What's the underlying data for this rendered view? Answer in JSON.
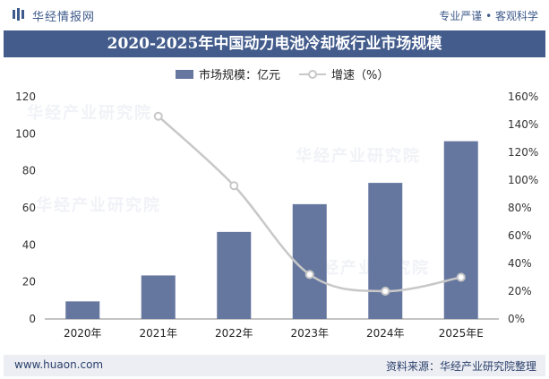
{
  "header": {
    "brand": "华经情报网",
    "slogan": "专业严谨 • 客观科学"
  },
  "title": "2020-2025年中国动力电池冷却板行业市场规模",
  "watermark": "华经产业研究院",
  "chart_data": {
    "type": "bar",
    "categories": [
      "2020年",
      "2021年",
      "2022年",
      "2023年",
      "2024年",
      "2025年E"
    ],
    "series": [
      {
        "name": "市场规模：亿元",
        "type": "bar",
        "axis": "left",
        "values": [
          9.5,
          23.5,
          47,
          62,
          73.5,
          96
        ]
      },
      {
        "name": "增速（%）",
        "type": "line",
        "axis": "right",
        "values": [
          null,
          146,
          96,
          32,
          20,
          30
        ]
      }
    ],
    "left_axis": {
      "min": 0,
      "max": 120,
      "ticks": [
        "0",
        "20",
        "40",
        "60",
        "80",
        "100",
        "120"
      ]
    },
    "right_axis": {
      "min": 0,
      "max": 160,
      "ticks": [
        "0%",
        "20%",
        "40%",
        "60%",
        "80%",
        "100%",
        "120%",
        "140%",
        "160%"
      ]
    },
    "grid": false,
    "legend": "top-center",
    "colors": {
      "bar": "#66779f",
      "line": "#c8c8c8",
      "marker_fill": "#ffffff"
    }
  },
  "footer": {
    "site": "www.huaon.com",
    "source": "资料来源：华经产业研究院整理"
  }
}
